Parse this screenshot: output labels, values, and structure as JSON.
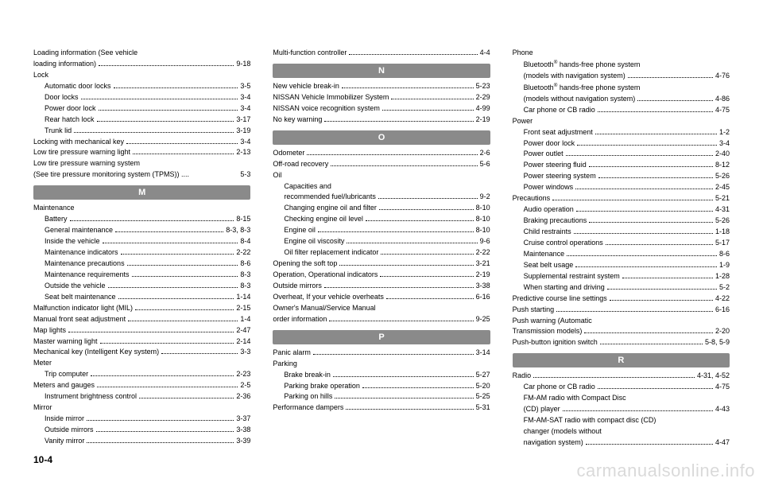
{
  "footer": "10-4",
  "watermark": "carmanualsonline.info",
  "headers": {
    "M": "M",
    "N": "N",
    "O": "O",
    "P": "P",
    "R": "R"
  },
  "col1": {
    "e0": {
      "label": "Loading information (See vehicle"
    },
    "e1": {
      "label": "loading information)",
      "pg": "9-18"
    },
    "e2": {
      "label": "Lock"
    },
    "e3": {
      "label": "Automatic door locks",
      "pg": "3-5"
    },
    "e4": {
      "label": "Door locks",
      "pg": "3-4"
    },
    "e5": {
      "label": "Power door lock",
      "pg": "3-4"
    },
    "e6": {
      "label": "Rear hatch lock",
      "pg": "3-17"
    },
    "e7": {
      "label": "Trunk lid",
      "pg": "3-19"
    },
    "e8": {
      "label": "Locking with mechanical key",
      "pg": "3-4"
    },
    "e9": {
      "label": "Low tire pressure warning light",
      "pg": "2-13"
    },
    "e10": {
      "label": "Low tire pressure warning system"
    },
    "e11": {
      "label": "(See tire pressure monitoring system (TPMS)) ....",
      "pg": "5-3"
    },
    "e12": {
      "label": "Maintenance"
    },
    "e13": {
      "label": "Battery",
      "pg": "8-15"
    },
    "e14": {
      "label": "General maintenance",
      "pg": "8-3, 8-3"
    },
    "e15": {
      "label": "Inside the vehicle",
      "pg": "8-4"
    },
    "e16": {
      "label": "Maintenance indicators",
      "pg": "2-22"
    },
    "e17": {
      "label": "Maintenance precautions",
      "pg": "8-6"
    },
    "e18": {
      "label": "Maintenance requirements",
      "pg": "8-3"
    },
    "e19": {
      "label": "Outside the vehicle",
      "pg": "8-3"
    },
    "e20": {
      "label": "Seat belt maintenance",
      "pg": "1-14"
    },
    "e21": {
      "label": "Malfunction indicator light (MIL)",
      "pg": "2-15"
    },
    "e22": {
      "label": "Manual front seat adjustment",
      "pg": "1-4"
    },
    "e23": {
      "label": "Map lights",
      "pg": "2-47"
    },
    "e24": {
      "label": "Master warning light",
      "pg": "2-14"
    },
    "e25": {
      "label": "Mechanical key (Intelligent Key system)",
      "pg": "3-3"
    },
    "e26": {
      "label": "Meter"
    },
    "e27": {
      "label": "Trip computer",
      "pg": "2-23"
    },
    "e28": {
      "label": "Meters and gauges",
      "pg": "2-5"
    },
    "e29": {
      "label": "Instrument brightness control",
      "pg": "2-36"
    },
    "e30": {
      "label": "Mirror"
    },
    "e31": {
      "label": "Inside mirror",
      "pg": "3-37"
    },
    "e32": {
      "label": "Outside mirrors",
      "pg": "3-38"
    },
    "e33": {
      "label": "Vanity mirror",
      "pg": "3-39"
    }
  },
  "col2": {
    "e0": {
      "label": "Multi-function controller",
      "pg": "4-4"
    },
    "e1": {
      "label": "New vehicle break-in",
      "pg": "5-23"
    },
    "e2": {
      "label": "NISSAN Vehicle Immobilizer System",
      "pg": "2-29"
    },
    "e3": {
      "label": "NISSAN voice recognition system",
      "pg": "4-99"
    },
    "e4": {
      "label": "No key warning",
      "pg": "2-19"
    },
    "e5": {
      "label": "Odometer",
      "pg": "2-6"
    },
    "e6": {
      "label": "Off-road recovery",
      "pg": "5-6"
    },
    "e7": {
      "label": "Oil"
    },
    "e8": {
      "label": "Capacities and"
    },
    "e9": {
      "label": "recommended fuel/lubricants",
      "pg": "9-2"
    },
    "e10": {
      "label": "Changing engine oil and filter",
      "pg": "8-10"
    },
    "e11": {
      "label": "Checking engine oil level",
      "pg": "8-10"
    },
    "e12": {
      "label": "Engine oil",
      "pg": "8-10"
    },
    "e13": {
      "label": "Engine oil viscosity",
      "pg": "9-6"
    },
    "e14": {
      "label": "Oil filter replacement indicator",
      "pg": "2-22"
    },
    "e15": {
      "label": "Opening the soft top",
      "pg": "3-21"
    },
    "e16": {
      "label": "Operation, Operational indicators",
      "pg": "2-19"
    },
    "e17": {
      "label": "Outside mirrors",
      "pg": "3-38"
    },
    "e18": {
      "label": "Overheat, If your vehicle overheats",
      "pg": "6-16"
    },
    "e19": {
      "label": "Owner's Manual/Service Manual"
    },
    "e20": {
      "label": "order information",
      "pg": "9-25"
    },
    "e21": {
      "label": "Panic alarm",
      "pg": "3-14"
    },
    "e22": {
      "label": "Parking"
    },
    "e23": {
      "label": "Brake break-in",
      "pg": "5-27"
    },
    "e24": {
      "label": "Parking brake operation",
      "pg": "5-20"
    },
    "e25": {
      "label": "Parking on hills",
      "pg": "5-25"
    },
    "e26": {
      "label": "Performance dampers",
      "pg": "5-31"
    }
  },
  "col3": {
    "e0": {
      "label": "Phone"
    },
    "e1a": "Bluetooth",
    "e1b": " hands-free phone system",
    "e2": {
      "label": "(models with navigation system)",
      "pg": "4-76"
    },
    "e3a": "Bluetooth",
    "e3b": " hands-free phone system",
    "e4": {
      "label": "(models without navigation system)",
      "pg": "4-86"
    },
    "e5": {
      "label": "Car phone or CB radio",
      "pg": "4-75"
    },
    "e6": {
      "label": "Power"
    },
    "e7": {
      "label": "Front seat adjustment",
      "pg": "1-2"
    },
    "e8": {
      "label": "Power door lock",
      "pg": "3-4"
    },
    "e9": {
      "label": "Power outlet",
      "pg": "2-40"
    },
    "e10": {
      "label": "Power steering fluid",
      "pg": "8-12"
    },
    "e11": {
      "label": "Power steering system",
      "pg": "5-26"
    },
    "e12": {
      "label": "Power windows",
      "pg": "2-45"
    },
    "e13": {
      "label": "Precautions",
      "pg": "5-21"
    },
    "e14": {
      "label": "Audio operation",
      "pg": "4-31"
    },
    "e15": {
      "label": "Braking precautions",
      "pg": "5-26"
    },
    "e16": {
      "label": "Child restraints",
      "pg": "1-18"
    },
    "e17": {
      "label": "Cruise control operations",
      "pg": "5-17"
    },
    "e18": {
      "label": "Maintenance",
      "pg": "8-6"
    },
    "e19": {
      "label": "Seat belt usage",
      "pg": "1-9"
    },
    "e20": {
      "label": "Supplemental restraint system",
      "pg": "1-28"
    },
    "e21": {
      "label": "When starting and driving",
      "pg": "5-2"
    },
    "e22": {
      "label": "Predictive course line settings",
      "pg": "4-22"
    },
    "e23": {
      "label": "Push starting",
      "pg": "6-16"
    },
    "e24": {
      "label": "Push warning (Automatic"
    },
    "e25": {
      "label": "Transmission models)",
      "pg": "2-20"
    },
    "e26": {
      "label": "Push-button ignition switch",
      "pg": "5-8, 5-9"
    },
    "e27": {
      "label": "Radio",
      "pg": "4-31, 4-52"
    },
    "e28": {
      "label": "Car phone or CB radio",
      "pg": "4-75"
    },
    "e29": {
      "label": "FM-AM radio with Compact Disc"
    },
    "e30": {
      "label": "(CD) player",
      "pg": "4-43"
    },
    "e31": {
      "label": "FM-AM-SAT radio with compact disc (CD)"
    },
    "e32": {
      "label": "changer (models without"
    },
    "e33": {
      "label": "navigation system)",
      "pg": "4-47"
    }
  }
}
